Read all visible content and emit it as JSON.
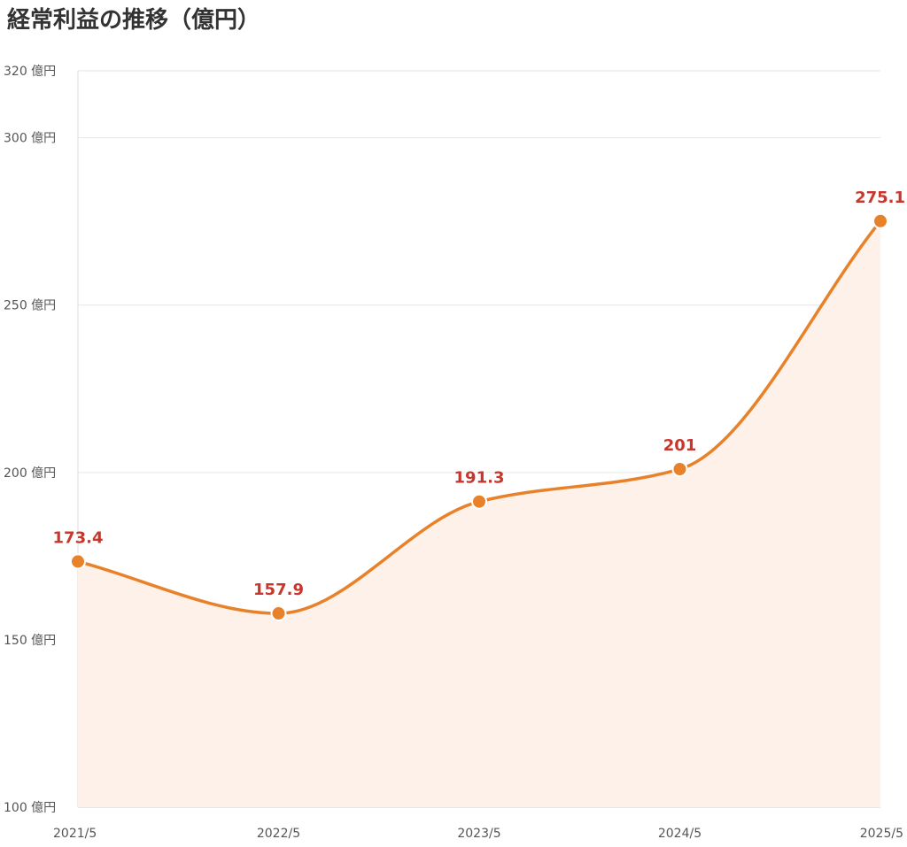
{
  "title": "経常利益の推移（億円）",
  "colors": {
    "line": "#e8822a",
    "area": "#fdf1ea",
    "label": "#c8372d",
    "grid": "#e6e6e6"
  },
  "chart_data": {
    "type": "line",
    "title": "経常利益の推移（億円）",
    "categories": [
      "2021/5",
      "2022/5",
      "2023/5",
      "2024/5",
      "2025/5"
    ],
    "values": [
      173.4,
      157.9,
      191.3,
      201,
      275.1
    ],
    "data_labels": [
      "173.4",
      "157.9",
      "191.3",
      "201",
      "275.1"
    ],
    "y_ticks": [
      100,
      150,
      200,
      250,
      300,
      320
    ],
    "y_tick_labels": [
      "100 億円",
      "150 億円",
      "200 億円",
      "250 億円",
      "300 億円",
      "320 億円"
    ],
    "ylim": [
      100,
      320
    ],
    "grid": true,
    "smooth": true,
    "area_fill": true,
    "xlabel": "",
    "ylabel": ""
  }
}
